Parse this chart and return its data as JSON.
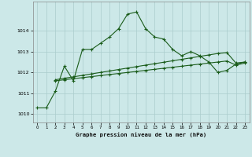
{
  "title": "Graphe pression niveau de la mer (hPa)",
  "background_color": "#cce8e8",
  "grid_color": "#aacccc",
  "line_color": "#1a5c1a",
  "xlim": [
    -0.5,
    23.5
  ],
  "ylim": [
    1009.6,
    1015.4
  ],
  "yticks": [
    1010,
    1011,
    1012,
    1013,
    1014
  ],
  "xticks": [
    0,
    1,
    2,
    3,
    4,
    5,
    6,
    7,
    8,
    9,
    10,
    11,
    12,
    13,
    14,
    15,
    16,
    17,
    18,
    19,
    20,
    21,
    22,
    23
  ],
  "curve1_x": [
    0,
    1,
    2,
    3,
    4,
    5,
    6,
    7,
    8,
    9,
    10,
    11,
    12,
    13,
    14,
    15,
    16,
    17,
    18,
    19,
    20,
    21,
    22,
    23
  ],
  "curve1_y": [
    1010.3,
    1010.3,
    1011.1,
    1012.3,
    1011.6,
    1013.1,
    1013.1,
    1013.4,
    1013.7,
    1014.1,
    1014.8,
    1014.9,
    1014.1,
    1013.7,
    1013.6,
    1013.1,
    1012.8,
    1013.0,
    1012.8,
    1012.5,
    1012.0,
    1012.1,
    1012.4,
    1012.5
  ],
  "curve2_x": [
    2,
    3,
    4,
    5,
    6,
    7,
    8,
    9,
    10,
    11,
    12,
    13,
    14,
    15,
    16,
    17,
    18,
    19,
    20,
    21,
    22,
    23
  ],
  "curve2_y": [
    1011.65,
    1011.72,
    1011.79,
    1011.86,
    1011.93,
    1012.0,
    1012.07,
    1012.14,
    1012.21,
    1012.28,
    1012.35,
    1012.42,
    1012.49,
    1012.56,
    1012.63,
    1012.7,
    1012.77,
    1012.84,
    1012.91,
    1012.95,
    1012.45,
    1012.5
  ],
  "curve3_x": [
    2,
    3,
    4,
    5,
    6,
    7,
    8,
    9,
    10,
    11,
    12,
    13,
    14,
    15,
    16,
    17,
    18,
    19,
    20,
    21,
    22,
    23
  ],
  "curve3_y": [
    1011.6,
    1011.65,
    1011.7,
    1011.75,
    1011.8,
    1011.85,
    1011.9,
    1011.95,
    1012.0,
    1012.05,
    1012.1,
    1012.15,
    1012.2,
    1012.25,
    1012.3,
    1012.35,
    1012.4,
    1012.45,
    1012.5,
    1012.55,
    1012.35,
    1012.45
  ]
}
